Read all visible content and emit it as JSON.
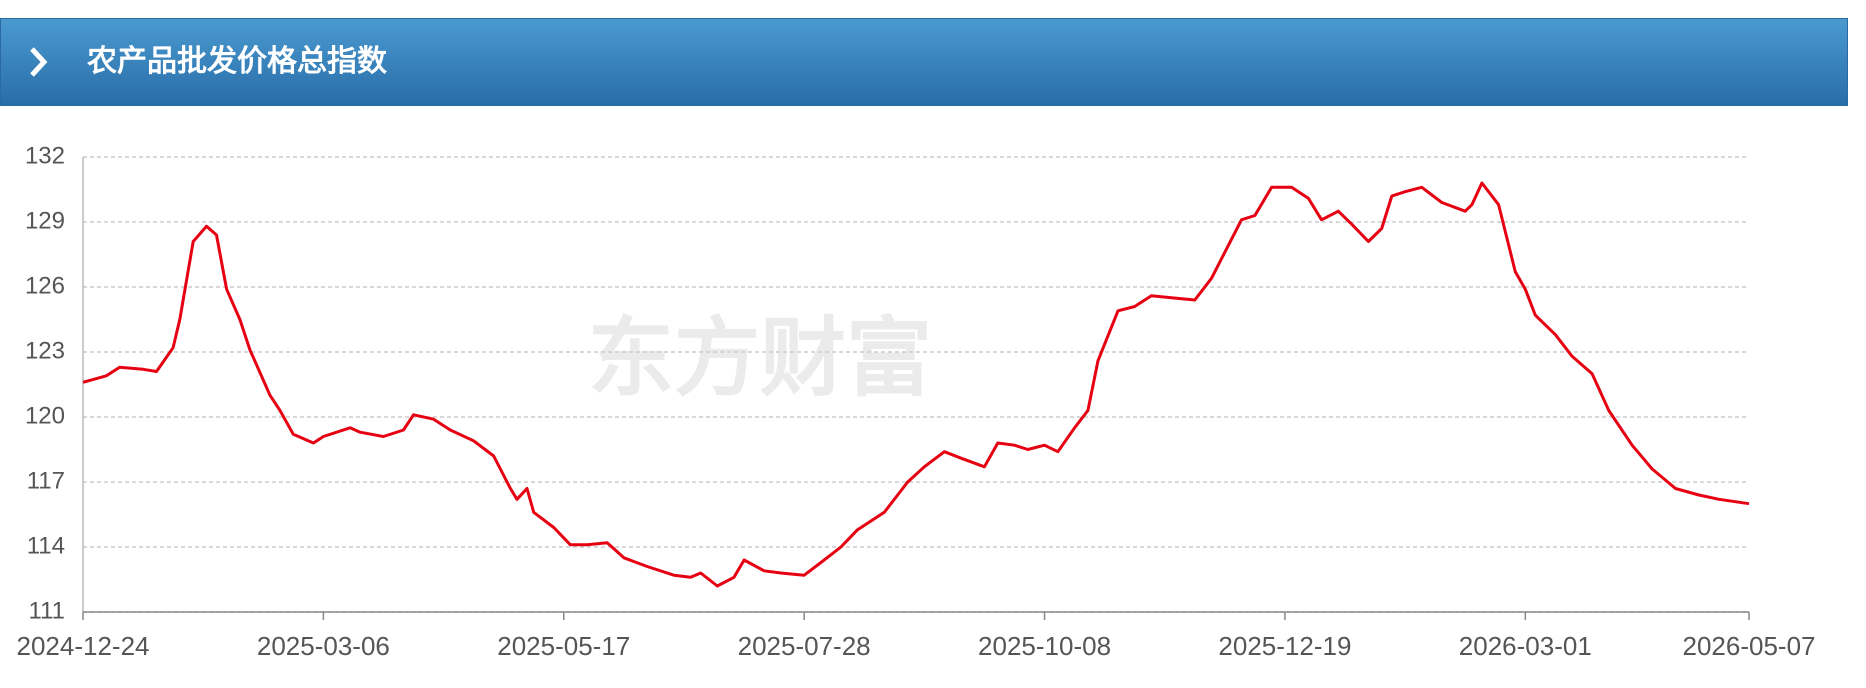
{
  "header": {
    "title": "农产品批发价格总指数"
  },
  "chart_data": {
    "type": "line",
    "watermark": "东方财富",
    "x": [
      "2024-12-24",
      "2024-12-31",
      "2025-01-04",
      "2025-01-11",
      "2025-01-15",
      "2025-01-20",
      "2025-01-22",
      "2025-01-26",
      "2025-01-30",
      "2025-02-02",
      "2025-02-05",
      "2025-02-09",
      "2025-02-12",
      "2025-02-18",
      "2025-02-21",
      "2025-02-25",
      "2025-03-03",
      "2025-03-06",
      "2025-03-14",
      "2025-03-17",
      "2025-03-24",
      "2025-03-30",
      "2025-04-02",
      "2025-04-08",
      "2025-04-13",
      "2025-04-20",
      "2025-04-26",
      "2025-05-01",
      "2025-05-03",
      "2025-05-06",
      "2025-05-08",
      "2025-05-14",
      "2025-05-19",
      "2025-05-24",
      "2025-05-30",
      "2025-06-04",
      "2025-06-11",
      "2025-06-19",
      "2025-06-24",
      "2025-06-27",
      "2025-07-02",
      "2025-07-07",
      "2025-07-10",
      "2025-07-16",
      "2025-07-21",
      "2025-07-28",
      "2025-08-03",
      "2025-08-08",
      "2025-08-13",
      "2025-08-21",
      "2025-08-28",
      "2025-09-02",
      "2025-09-08",
      "2025-09-13",
      "2025-09-20",
      "2025-09-24",
      "2025-09-29",
      "2025-10-03",
      "2025-10-08",
      "2025-10-12",
      "2025-10-17",
      "2025-10-21",
      "2025-10-24",
      "2025-10-30",
      "2025-11-04",
      "2025-11-09",
      "2025-11-15",
      "2025-11-22",
      "2025-11-27",
      "2025-12-01",
      "2025-12-06",
      "2025-12-10",
      "2025-12-15",
      "2025-12-21",
      "2025-12-26",
      "2025-12-30",
      "2026-01-04",
      "2026-01-08",
      "2026-01-13",
      "2026-01-17",
      "2026-01-20",
      "2026-01-24",
      "2026-01-29",
      "2026-02-04",
      "2026-02-11",
      "2026-02-13",
      "2026-02-16",
      "2026-02-21",
      "2026-02-26",
      "2026-03-01",
      "2026-03-04",
      "2026-03-10",
      "2026-03-15",
      "2026-03-21",
      "2026-03-26",
      "2026-04-02",
      "2026-04-08",
      "2026-04-15",
      "2026-04-22",
      "2026-04-28",
      "2026-05-07"
    ],
    "series": [
      {
        "color": "#e60012",
        "values": [
          121.6,
          121.9,
          122.3,
          122.2,
          122.1,
          123.2,
          124.5,
          128.1,
          128.8,
          128.4,
          125.9,
          124.5,
          123.1,
          121.0,
          120.3,
          119.2,
          118.8,
          119.1,
          119.5,
          119.3,
          119.1,
          119.4,
          120.1,
          119.9,
          119.4,
          118.9,
          118.2,
          116.7,
          116.2,
          116.7,
          115.6,
          114.9,
          114.1,
          114.1,
          114.2,
          113.5,
          113.1,
          112.7,
          112.6,
          112.8,
          112.2,
          112.6,
          113.4,
          112.9,
          112.8,
          112.7,
          113.4,
          114.0,
          114.8,
          115.6,
          117.0,
          117.7,
          118.4,
          118.1,
          117.7,
          118.8,
          118.7,
          118.5,
          118.7,
          118.4,
          119.5,
          120.3,
          122.6,
          124.9,
          125.1,
          125.6,
          125.5,
          125.4,
          126.4,
          127.6,
          129.1,
          129.3,
          130.6,
          130.6,
          130.1,
          129.1,
          129.5,
          128.9,
          128.1,
          128.7,
          130.2,
          130.4,
          130.6,
          129.9,
          129.5,
          129.8,
          130.8,
          129.8,
          126.7,
          125.9,
          124.7,
          123.8,
          122.8,
          122.0,
          120.3,
          118.7,
          117.6,
          116.7,
          116.4,
          116.2,
          116.0
        ]
      }
    ],
    "xlim": [
      "2024-12-24",
      "2026-05-07"
    ],
    "xticks": [
      "2024-12-24",
      "2025-03-06",
      "2025-05-17",
      "2025-07-28",
      "2025-10-08",
      "2025-12-19",
      "2026-03-01",
      "2026-05-07"
    ],
    "ylim": [
      111,
      132
    ],
    "yticks": [
      111,
      114,
      117,
      120,
      123,
      126,
      129,
      132
    ],
    "grid": true
  }
}
